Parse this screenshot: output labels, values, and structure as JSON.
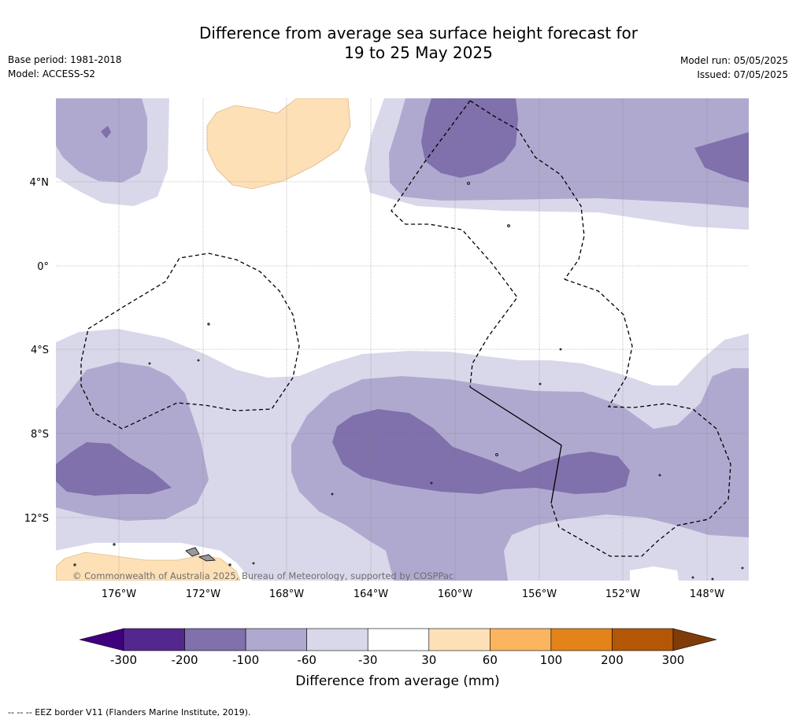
{
  "title": {
    "line1": "Difference from average sea surface height forecast for",
    "line2": "19 to 25 May 2025"
  },
  "meta_left": {
    "base_period": "Base period: 1981-2018",
    "model": "Model: ACCESS-S2"
  },
  "meta_right": {
    "model_run": "Model run: 05/05/2025",
    "issued": "Issued: 07/05/2025"
  },
  "map": {
    "lat_labels": [
      "4°N",
      "0°",
      "4°S",
      "8°S",
      "12°S"
    ],
    "lon_labels": [
      "176°W",
      "172°W",
      "168°W",
      "164°W",
      "160°W",
      "156°W",
      "152°W",
      "148°W"
    ],
    "copyright": "© Commonwealth of Australia 2025, Bureau of Meteorology, supported by COSPPac"
  },
  "colorbar": {
    "title": "Difference from average (mm)",
    "tick_labels": [
      "-300",
      "-200",
      "-100",
      "-60",
      "-30",
      "30",
      "60",
      "100",
      "200",
      "300"
    ],
    "colors": {
      "extend_low": "#3f007d",
      "bin_-300_-200": "#54278f",
      "bin_-200_-100": "#8070ab",
      "bin_-100_-60": "#b0a9cf",
      "bin_-60_-30": "#d9d8ea",
      "bin_-30_30": "#ffffff",
      "bin_30_60": "#fde0b6",
      "bin_60_100": "#fbb55f",
      "bin_100_200": "#e38319",
      "bin_200_300": "#b35706",
      "extend_high": "#7f3b08"
    }
  },
  "footnote": "--  --  -- EEZ border V11 (Flanders Marine Institute, 2019)."
}
